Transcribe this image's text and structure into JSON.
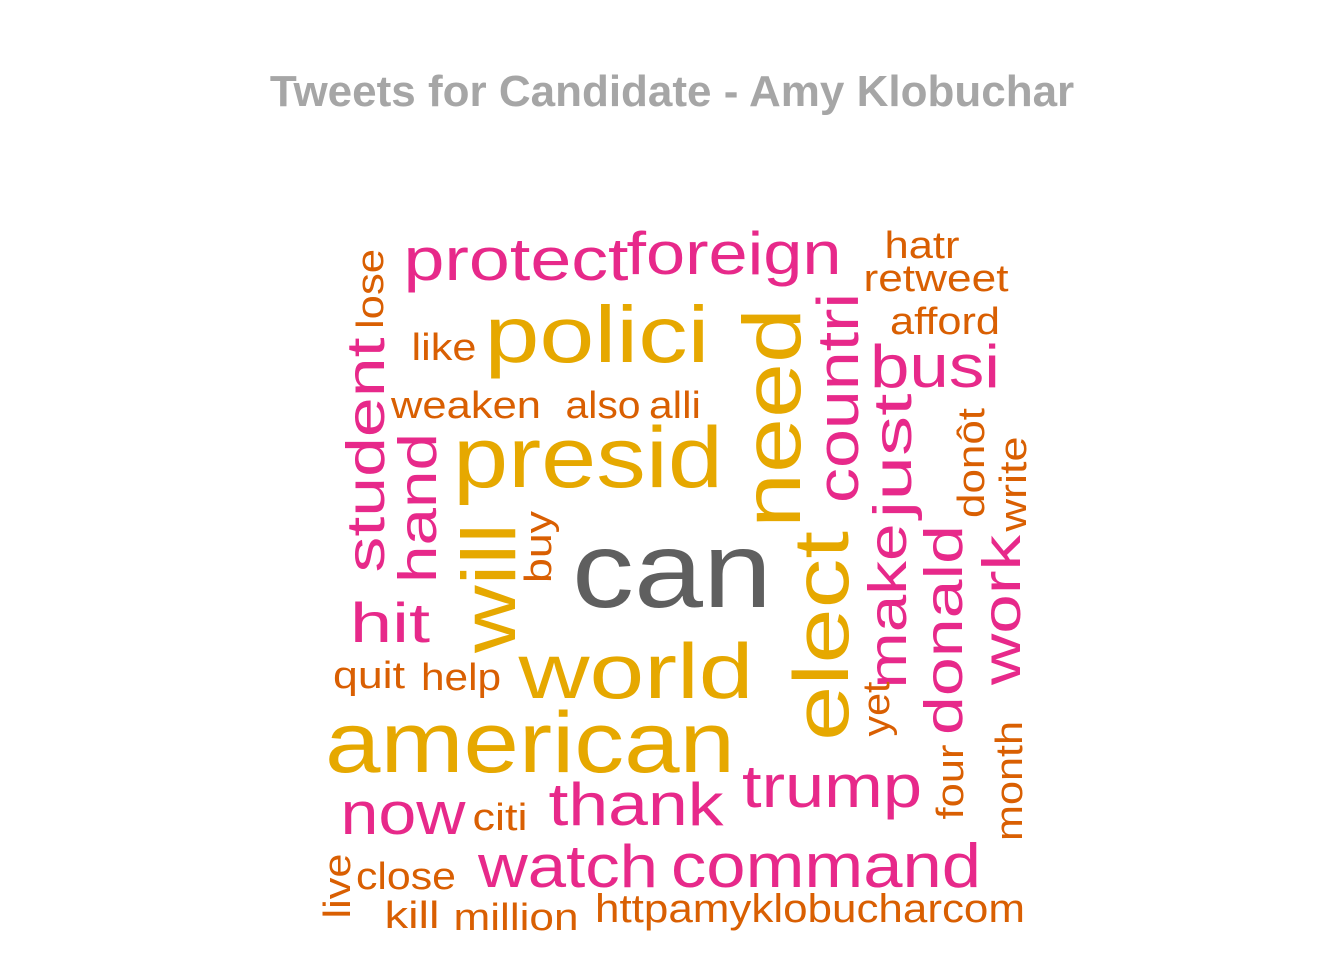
{
  "chart_data": {
    "type": "wordcloud",
    "title": "Tweets for Candidate - Amy Klobuchar",
    "colors": {
      "top": "#5f5f5f",
      "high": "#e6a800",
      "mid": "#e7298a",
      "low": "#d95f02"
    },
    "words": [
      {
        "text": "can",
        "tier": "top"
      },
      {
        "text": "american",
        "tier": "high"
      },
      {
        "text": "presid",
        "tier": "high"
      },
      {
        "text": "world",
        "tier": "high"
      },
      {
        "text": "polici",
        "tier": "high"
      },
      {
        "text": "need",
        "tier": "high"
      },
      {
        "text": "elect",
        "tier": "high"
      },
      {
        "text": "will",
        "tier": "high"
      },
      {
        "text": "command",
        "tier": "mid"
      },
      {
        "text": "foreign",
        "tier": "mid"
      },
      {
        "text": "protect",
        "tier": "mid"
      },
      {
        "text": "trump",
        "tier": "mid"
      },
      {
        "text": "thank",
        "tier": "mid"
      },
      {
        "text": "watch",
        "tier": "mid"
      },
      {
        "text": "now",
        "tier": "mid"
      },
      {
        "text": "busi",
        "tier": "mid"
      },
      {
        "text": "countri",
        "tier": "mid"
      },
      {
        "text": "student",
        "tier": "mid"
      },
      {
        "text": "hand",
        "tier": "mid"
      },
      {
        "text": "hit",
        "tier": "mid"
      },
      {
        "text": "just",
        "tier": "mid"
      },
      {
        "text": "make",
        "tier": "mid"
      },
      {
        "text": "donald",
        "tier": "mid"
      },
      {
        "text": "work",
        "tier": "mid"
      },
      {
        "text": "httpamyklobucharcom",
        "tier": "low"
      },
      {
        "text": "retweet",
        "tier": "low"
      },
      {
        "text": "weaken",
        "tier": "low"
      },
      {
        "text": "afford",
        "tier": "low"
      },
      {
        "text": "million",
        "tier": "low"
      },
      {
        "text": "close",
        "tier": "low"
      },
      {
        "text": "hatr",
        "tier": "low"
      },
      {
        "text": "like",
        "tier": "low"
      },
      {
        "text": "also",
        "tier": "low"
      },
      {
        "text": "alli",
        "tier": "low"
      },
      {
        "text": "quit",
        "tier": "low"
      },
      {
        "text": "help",
        "tier": "low"
      },
      {
        "text": "citi",
        "tier": "low"
      },
      {
        "text": "kill",
        "tier": "low"
      },
      {
        "text": "lose",
        "tier": "low"
      },
      {
        "text": "buy",
        "tier": "low"
      },
      {
        "text": "donôt",
        "tier": "low"
      },
      {
        "text": "write",
        "tier": "low"
      },
      {
        "text": "yet",
        "tier": "low"
      },
      {
        "text": "four",
        "tier": "low"
      },
      {
        "text": "month",
        "tier": "low"
      },
      {
        "text": "live",
        "tier": "low"
      }
    ]
  }
}
